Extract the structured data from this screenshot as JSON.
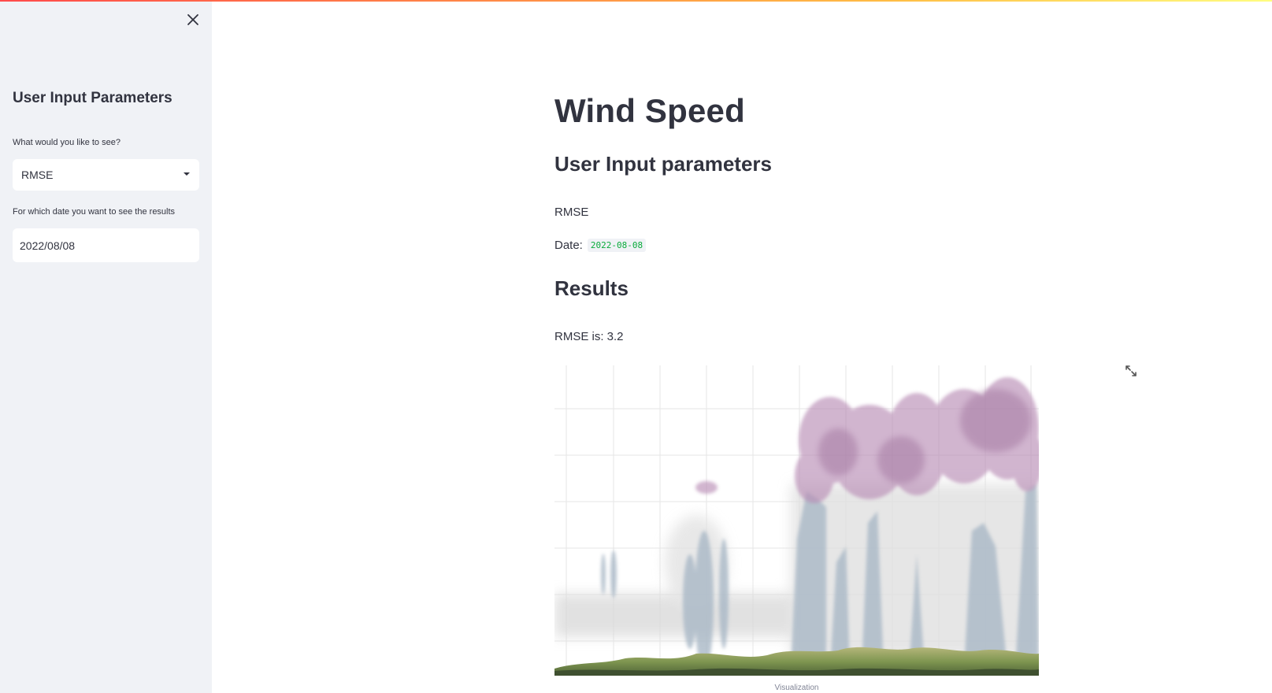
{
  "sidebar": {
    "close_icon": "close-icon",
    "heading": "User Input Parameters",
    "metric_label": "What would you like to see?",
    "metric_value": "RMSE",
    "date_label": "For which date you want to see the results",
    "date_value": "2022/08/08"
  },
  "main": {
    "title": "Wind Speed",
    "params_heading": "User Input parameters",
    "metric_text": "RMSE",
    "date_prefix": "Date:",
    "date_code": "2022-08-08",
    "results_heading": "Results",
    "result_text": "RMSE is: 3.2",
    "fullscreen_icon": "fullscreen-icon",
    "image_caption": "Visualization"
  },
  "colors": {
    "accent_red": "#ff4b4b",
    "sidebar_bg": "#f0f2f6",
    "text": "#31333f",
    "code_green": "#09ab3b"
  }
}
